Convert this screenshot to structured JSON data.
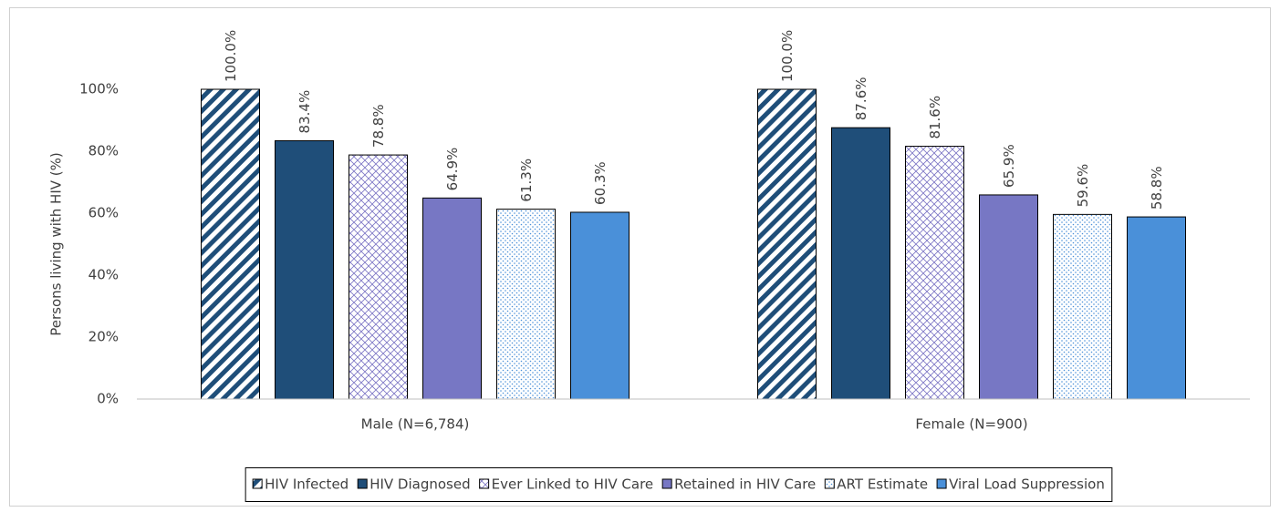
{
  "chart_data": {
    "type": "bar",
    "y_label": "Persons living with HIV (%)",
    "categories": [
      "Male (N=6,784)",
      "Female (N=900)"
    ],
    "series": [
      {
        "name": "HIV Infected",
        "color": "#1f4e79",
        "pattern": "diagonal",
        "values": [
          100.0,
          100.0
        ],
        "value_labels": [
          "100.0%",
          "100.0%"
        ]
      },
      {
        "name": "HIV Diagnosed",
        "color": "#1f4e79",
        "pattern": "solid",
        "values": [
          83.4,
          87.6
        ],
        "value_labels": [
          "83.4%",
          "87.6%"
        ]
      },
      {
        "name": "Ever Linked to HIV Care",
        "color": "#7b74c4",
        "pattern": "crosshatch",
        "values": [
          78.8,
          81.6
        ],
        "value_labels": [
          "78.8%",
          "81.6%"
        ]
      },
      {
        "name": "Retained in HIV Care",
        "color": "#7777c4",
        "pattern": "solid",
        "values": [
          64.9,
          65.9
        ],
        "value_labels": [
          "64.9%",
          "65.9%"
        ]
      },
      {
        "name": "ART Estimate",
        "color": "#4a90d9",
        "pattern": "dots",
        "values": [
          61.3,
          59.6
        ],
        "value_labels": [
          "61.3%",
          "59.6%"
        ]
      },
      {
        "name": "Viral Load Suppression",
        "color": "#4a90d9",
        "pattern": "solid",
        "values": [
          60.3,
          58.8
        ],
        "value_labels": [
          "60.3%",
          "58.8%"
        ]
      }
    ],
    "ylim": [
      0,
      100
    ],
    "yticks": [
      {
        "value": 0,
        "label": "0%"
      },
      {
        "value": 20,
        "label": "20%"
      },
      {
        "value": 40,
        "label": "40%"
      },
      {
        "value": 60,
        "label": "60%"
      },
      {
        "value": 80,
        "label": "80%"
      },
      {
        "value": 100,
        "label": "100%"
      }
    ],
    "legend": "bottom"
  }
}
